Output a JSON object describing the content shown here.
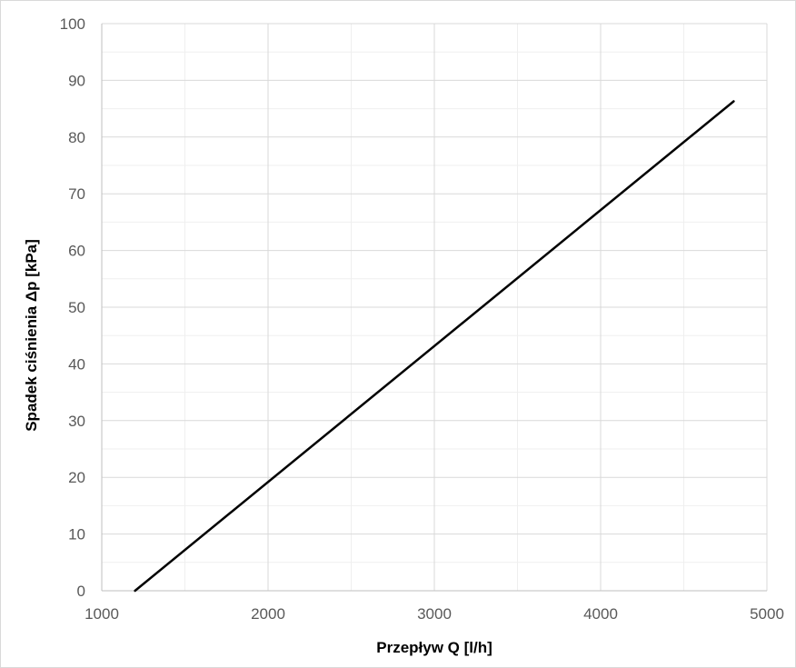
{
  "chart_data": {
    "type": "line",
    "title": "",
    "xlabel": "Przepływ Q [l/h]",
    "ylabel": "Spadek ciśnienia Δp [kPa]",
    "xlim": [
      1000,
      5000
    ],
    "ylim": [
      0,
      100
    ],
    "x_ticks": [
      1000,
      2000,
      3000,
      4000,
      5000
    ],
    "y_ticks": [
      0,
      10,
      20,
      30,
      40,
      50,
      60,
      70,
      80,
      90,
      100
    ],
    "x_tick_labels": [
      "1000",
      "2000",
      "3000",
      "4000",
      "5000"
    ],
    "y_tick_labels": [
      "0",
      "10",
      "20",
      "30",
      "40",
      "50",
      "60",
      "70",
      "80",
      "90",
      "100"
    ],
    "grid": true,
    "minor_grid": true,
    "legend": "none",
    "series": [
      {
        "color": "#000000",
        "x": [
          1200,
          4800
        ],
        "y": [
          0,
          86.3
        ]
      }
    ]
  }
}
